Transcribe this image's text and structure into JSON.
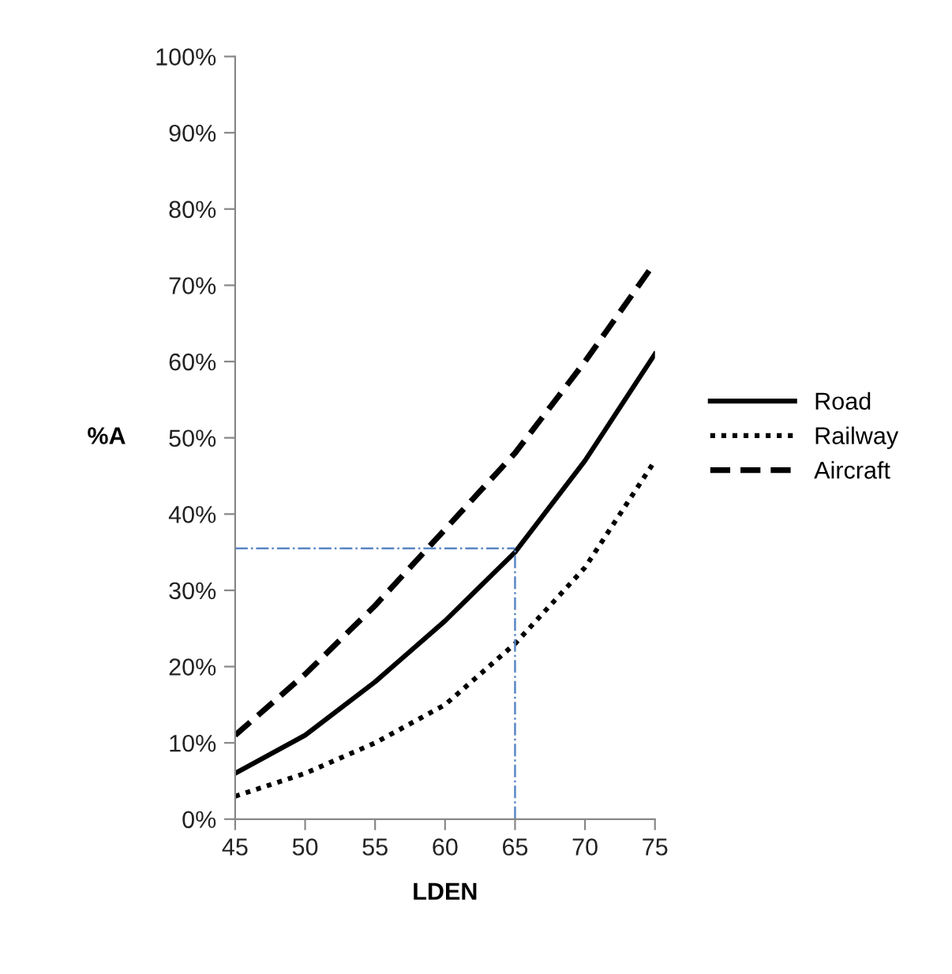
{
  "chart_data": {
    "type": "line",
    "xlabel": "LDEN",
    "ylabel": "%A",
    "x": [
      45,
      50,
      55,
      60,
      65,
      70,
      75
    ],
    "series": [
      {
        "name": "Road",
        "color": "#000000",
        "line_style": "solid",
        "values": [
          6,
          11,
          18,
          26,
          35,
          47,
          61
        ]
      },
      {
        "name": "Railway",
        "color": "#000000",
        "line_style": "dotted",
        "values": [
          3,
          6,
          10,
          15,
          23,
          33,
          47
        ]
      },
      {
        "name": "Aircraft",
        "color": "#000000",
        "line_style": "dashed",
        "values": [
          11,
          19,
          28,
          38,
          48,
          60,
          73
        ]
      }
    ],
    "xlim": [
      45,
      75
    ],
    "xticks": [
      45,
      50,
      55,
      60,
      65,
      70,
      75
    ],
    "ylim": [
      0,
      100
    ],
    "yticks": [
      {
        "value": 0,
        "label": "0%"
      },
      {
        "value": 10,
        "label": "10%"
      },
      {
        "value": 20,
        "label": "20%"
      },
      {
        "value": 30,
        "label": "30%"
      },
      {
        "value": 40,
        "label": "40%"
      },
      {
        "value": 50,
        "label": "50%"
      },
      {
        "value": 60,
        "label": "60%"
      },
      {
        "value": 70,
        "label": "70%"
      },
      {
        "value": 80,
        "label": "80%"
      },
      {
        "value": 90,
        "label": "90%"
      },
      {
        "value": 100,
        "label": "100%"
      }
    ],
    "ref_lines": [
      {
        "axis": "y",
        "value": 35.5,
        "color": "#5b87c5",
        "line_style": "dashdot"
      },
      {
        "axis": "x",
        "value": 65,
        "color": "#5b87c5",
        "line_style": "dashdot"
      }
    ],
    "grid": false,
    "marker": "none",
    "legend": "right"
  }
}
